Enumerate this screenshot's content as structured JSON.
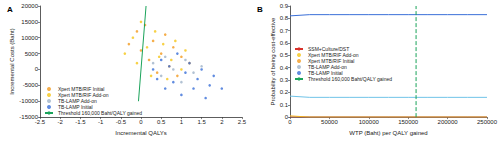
{
  "chart_data": [
    {
      "title": "A",
      "type": "scatter",
      "xlabel": "Incremental QALYs",
      "ylabel": "Incremental Costs (Baht)",
      "xlim": [
        -2.5,
        2.5
      ],
      "xticks": [
        -2.5,
        -2,
        -1.5,
        -1,
        -0.5,
        0,
        0.5,
        1,
        1.5,
        2,
        2.5
      ],
      "ylim": [
        -15000,
        20000
      ],
      "yticks": [
        -15000,
        -10000,
        -5000,
        0,
        5000,
        10000,
        15000,
        20000
      ],
      "grid": false,
      "legend": "lower left",
      "series": [
        {
          "name": "Xpert MTB/RIF Initial",
          "color": "#f39a1e",
          "marker": "circle",
          "x": [
            -0.3,
            -0.1,
            0,
            0.1,
            0.2,
            0.3,
            0.4,
            0.5,
            0.6,
            0.7,
            0.8,
            0.9,
            1.0,
            1.2
          ],
          "values": [
            8000,
            12000,
            6000,
            14000,
            3000,
            9000,
            -1000,
            5000,
            11000,
            1000,
            7000,
            -2000,
            4000,
            2000
          ]
        },
        {
          "name": "Xpert MTB/RIF Add-on",
          "color": "#f5c518",
          "marker": "circle",
          "x": [
            -0.4,
            -0.2,
            -0.1,
            0,
            0.15,
            0.25,
            0.35,
            0.45,
            0.55,
            0.65,
            0.75,
            0.85,
            1.0,
            1.1
          ],
          "values": [
            5000,
            10000,
            2000,
            15000,
            7000,
            -2000,
            12000,
            4000,
            8000,
            -3000,
            3000,
            9000,
            0,
            6000
          ]
        },
        {
          "name": "TB-LAMP Add-on",
          "color": "#9fb3c8",
          "marker": "circle",
          "x": [
            0.3,
            0.5,
            0.6,
            0.8,
            1.0,
            1.1,
            1.3,
            1.5
          ],
          "values": [
            2000,
            -2000,
            4000,
            0,
            -4000,
            3000,
            -1000,
            1000
          ]
        },
        {
          "name": "TB-LAMP Initial",
          "color": "#3a6fd8",
          "marker": "circle",
          "x": [
            0.3,
            0.4,
            0.5,
            0.6,
            0.7,
            0.8,
            0.9,
            1.0,
            1.1,
            1.2,
            1.3,
            1.4,
            1.5,
            1.6,
            1.7,
            1.8,
            2.0
          ],
          "values": [
            0,
            -3000,
            3000,
            -6000,
            1000,
            -4000,
            5000,
            -8000,
            -1000,
            2000,
            -6000,
            -3000,
            0,
            -9000,
            -5000,
            -2000,
            -6000
          ]
        },
        {
          "name": "Threshold 160,000 Baht/QALY gained",
          "color": "#1aa35a",
          "type": "line",
          "line_style": "solid",
          "x": [
            -0.0625,
            0.125
          ],
          "values": [
            -10000,
            20000
          ]
        }
      ]
    },
    {
      "title": "B",
      "type": "line",
      "xlabel": "WTP (Baht) per QALY gained",
      "ylabel": "Probability of being cost-effective",
      "xlim": [
        0,
        250000
      ],
      "xticks": [
        0,
        50000,
        100000,
        150000,
        200000,
        250000
      ],
      "ylim": [
        0,
        0.9
      ],
      "yticks": [
        0,
        0.1,
        0.2,
        0.3,
        0.4,
        0.5,
        0.6,
        0.7,
        0.8,
        0.9
      ],
      "grid": false,
      "legend": "center left",
      "x": [
        0,
        25000,
        50000,
        75000,
        100000,
        125000,
        150000,
        175000,
        200000,
        225000,
        250000
      ],
      "series": [
        {
          "name": "SSM+Culture/DST",
          "color": "#d9312b",
          "line_style": "solid",
          "values": [
            0,
            0,
            0,
            0,
            0,
            0,
            0,
            0,
            0,
            0,
            0
          ]
        },
        {
          "name": "Xpert MTB/RIF Add-on",
          "color": "#8c8c8c",
          "line_style": "solid",
          "values": [
            0,
            0,
            0,
            0,
            0,
            0,
            0,
            0,
            0,
            0,
            0
          ]
        },
        {
          "name": "Xpert MTB/RIF Initial",
          "color": "#f5b21e",
          "line_style": "solid",
          "values": [
            0.01,
            0,
            0,
            0,
            0,
            0,
            0,
            0,
            0,
            0,
            0
          ]
        },
        {
          "name": "TB-LAMP Add-on",
          "color": "#6fc3e8",
          "line_style": "solid",
          "values": [
            0.17,
            0.16,
            0.16,
            0.16,
            0.16,
            0.16,
            0.16,
            0.16,
            0.16,
            0.16,
            0.16
          ]
        },
        {
          "name": "TB-LAMP Initial",
          "color": "#3a6fd8",
          "line_style": "solid",
          "values": [
            0.82,
            0.83,
            0.83,
            0.83,
            0.83,
            0.83,
            0.83,
            0.83,
            0.83,
            0.83,
            0.83
          ]
        },
        {
          "name": "Threshold 160,000 Baht/QALY gained",
          "color": "#1aa35a",
          "line_style": "dashed",
          "x": [
            160000,
            160000
          ],
          "values": [
            0,
            0.9
          ]
        }
      ]
    }
  ]
}
